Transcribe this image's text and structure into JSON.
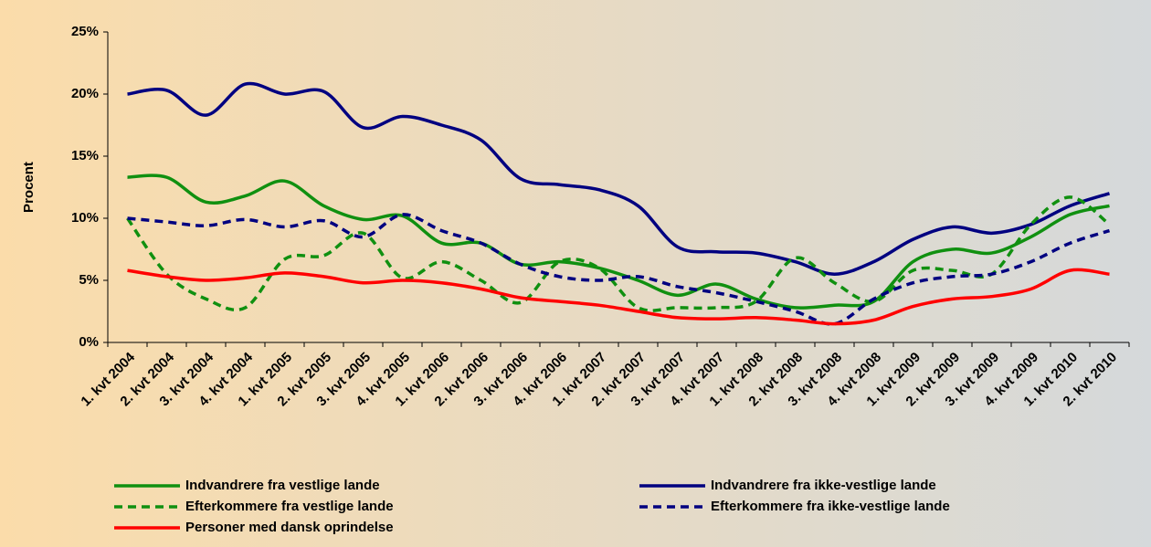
{
  "chart_data": {
    "type": "line",
    "y_label": "Procent",
    "categories": [
      "1. kvt 2004",
      "2. kvt 2004",
      "3. kvt 2004",
      "4. kvt 2004",
      "1. kvt 2005",
      "2. kvt 2005",
      "3. kvt 2005",
      "4. kvt 2005",
      "1. kvt 2006",
      "2. kvt 2006",
      "3. kvt 2006",
      "4. kvt 2006",
      "1. kvt 2007",
      "2. kvt 2007",
      "3. kvt 2007",
      "4. kvt 2007",
      "1. kvt 2008",
      "2. kvt 2008",
      "3. kvt 2008",
      "4. kvt 2008",
      "1. kvt 2009",
      "2. kvt 2009",
      "3. kvt 2009",
      "4. kvt 2009",
      "1. kvt 2010",
      "2. kvt 2010"
    ],
    "series": [
      {
        "name": "Indvandrere fra vestlige lande",
        "color": "#109010",
        "dashed": false,
        "values": [
          13.3,
          13.3,
          11.3,
          11.8,
          13,
          11,
          9.9,
          10.2,
          8,
          8,
          6.3,
          6.5,
          6,
          5,
          3.8,
          4.7,
          3.5,
          2.8,
          3,
          3.3,
          6.5,
          7.5,
          7.2,
          8.5,
          10.3,
          11
        ]
      },
      {
        "name": "Indvandrere fra ikke-vestlige lande",
        "color": "#000080",
        "dashed": false,
        "values": [
          20,
          20.3,
          18.3,
          20.8,
          20,
          20.2,
          17.3,
          18.2,
          17.5,
          16.3,
          13.2,
          12.7,
          12.3,
          11,
          7.7,
          7.3,
          7.2,
          6.5,
          5.5,
          6.5,
          8.3,
          9.3,
          8.8,
          9.5,
          11,
          12
        ]
      },
      {
        "name": "Efterkommere fra vestlige lande",
        "color": "#109010",
        "dashed": true,
        "values": [
          10,
          5.5,
          3.5,
          2.8,
          6.7,
          7,
          8.8,
          5.2,
          6.5,
          5,
          3.2,
          6.5,
          6,
          2.8,
          2.8,
          2.8,
          3.3,
          6.8,
          4.8,
          3.3,
          5.8,
          5.8,
          5.5,
          9.5,
          11.7,
          9.5
        ]
      },
      {
        "name": "Efterkommere fra ikke-vestlige lande",
        "color": "#000080",
        "dashed": true,
        "values": [
          10,
          9.7,
          9.4,
          9.9,
          9.3,
          9.8,
          8.5,
          10.3,
          9,
          8,
          6.3,
          5.3,
          5,
          5.3,
          4.5,
          4,
          3.3,
          2.5,
          1.5,
          3.5,
          4.8,
          5.3,
          5.5,
          6.5,
          8,
          9
        ]
      },
      {
        "name": "Personer med dansk oprindelse",
        "color": "#ff0000",
        "dashed": false,
        "values": [
          5.8,
          5.3,
          5,
          5.2,
          5.6,
          5.3,
          4.8,
          5,
          4.8,
          4.3,
          3.6,
          3.3,
          3,
          2.5,
          2,
          1.9,
          2,
          1.8,
          1.5,
          1.8,
          2.9,
          3.5,
          3.7,
          4.3,
          5.8,
          5.5
        ]
      }
    ],
    "ylim": [
      0,
      25
    ],
    "yticks": [
      {
        "value": 0,
        "label": "0%"
      },
      {
        "value": 5,
        "label": "5%"
      },
      {
        "value": 10,
        "label": "10%"
      },
      {
        "value": 15,
        "label": "15%"
      },
      {
        "value": 20,
        "label": "20%"
      },
      {
        "value": 25,
        "label": "25%"
      }
    ],
    "legend": "bottom"
  }
}
